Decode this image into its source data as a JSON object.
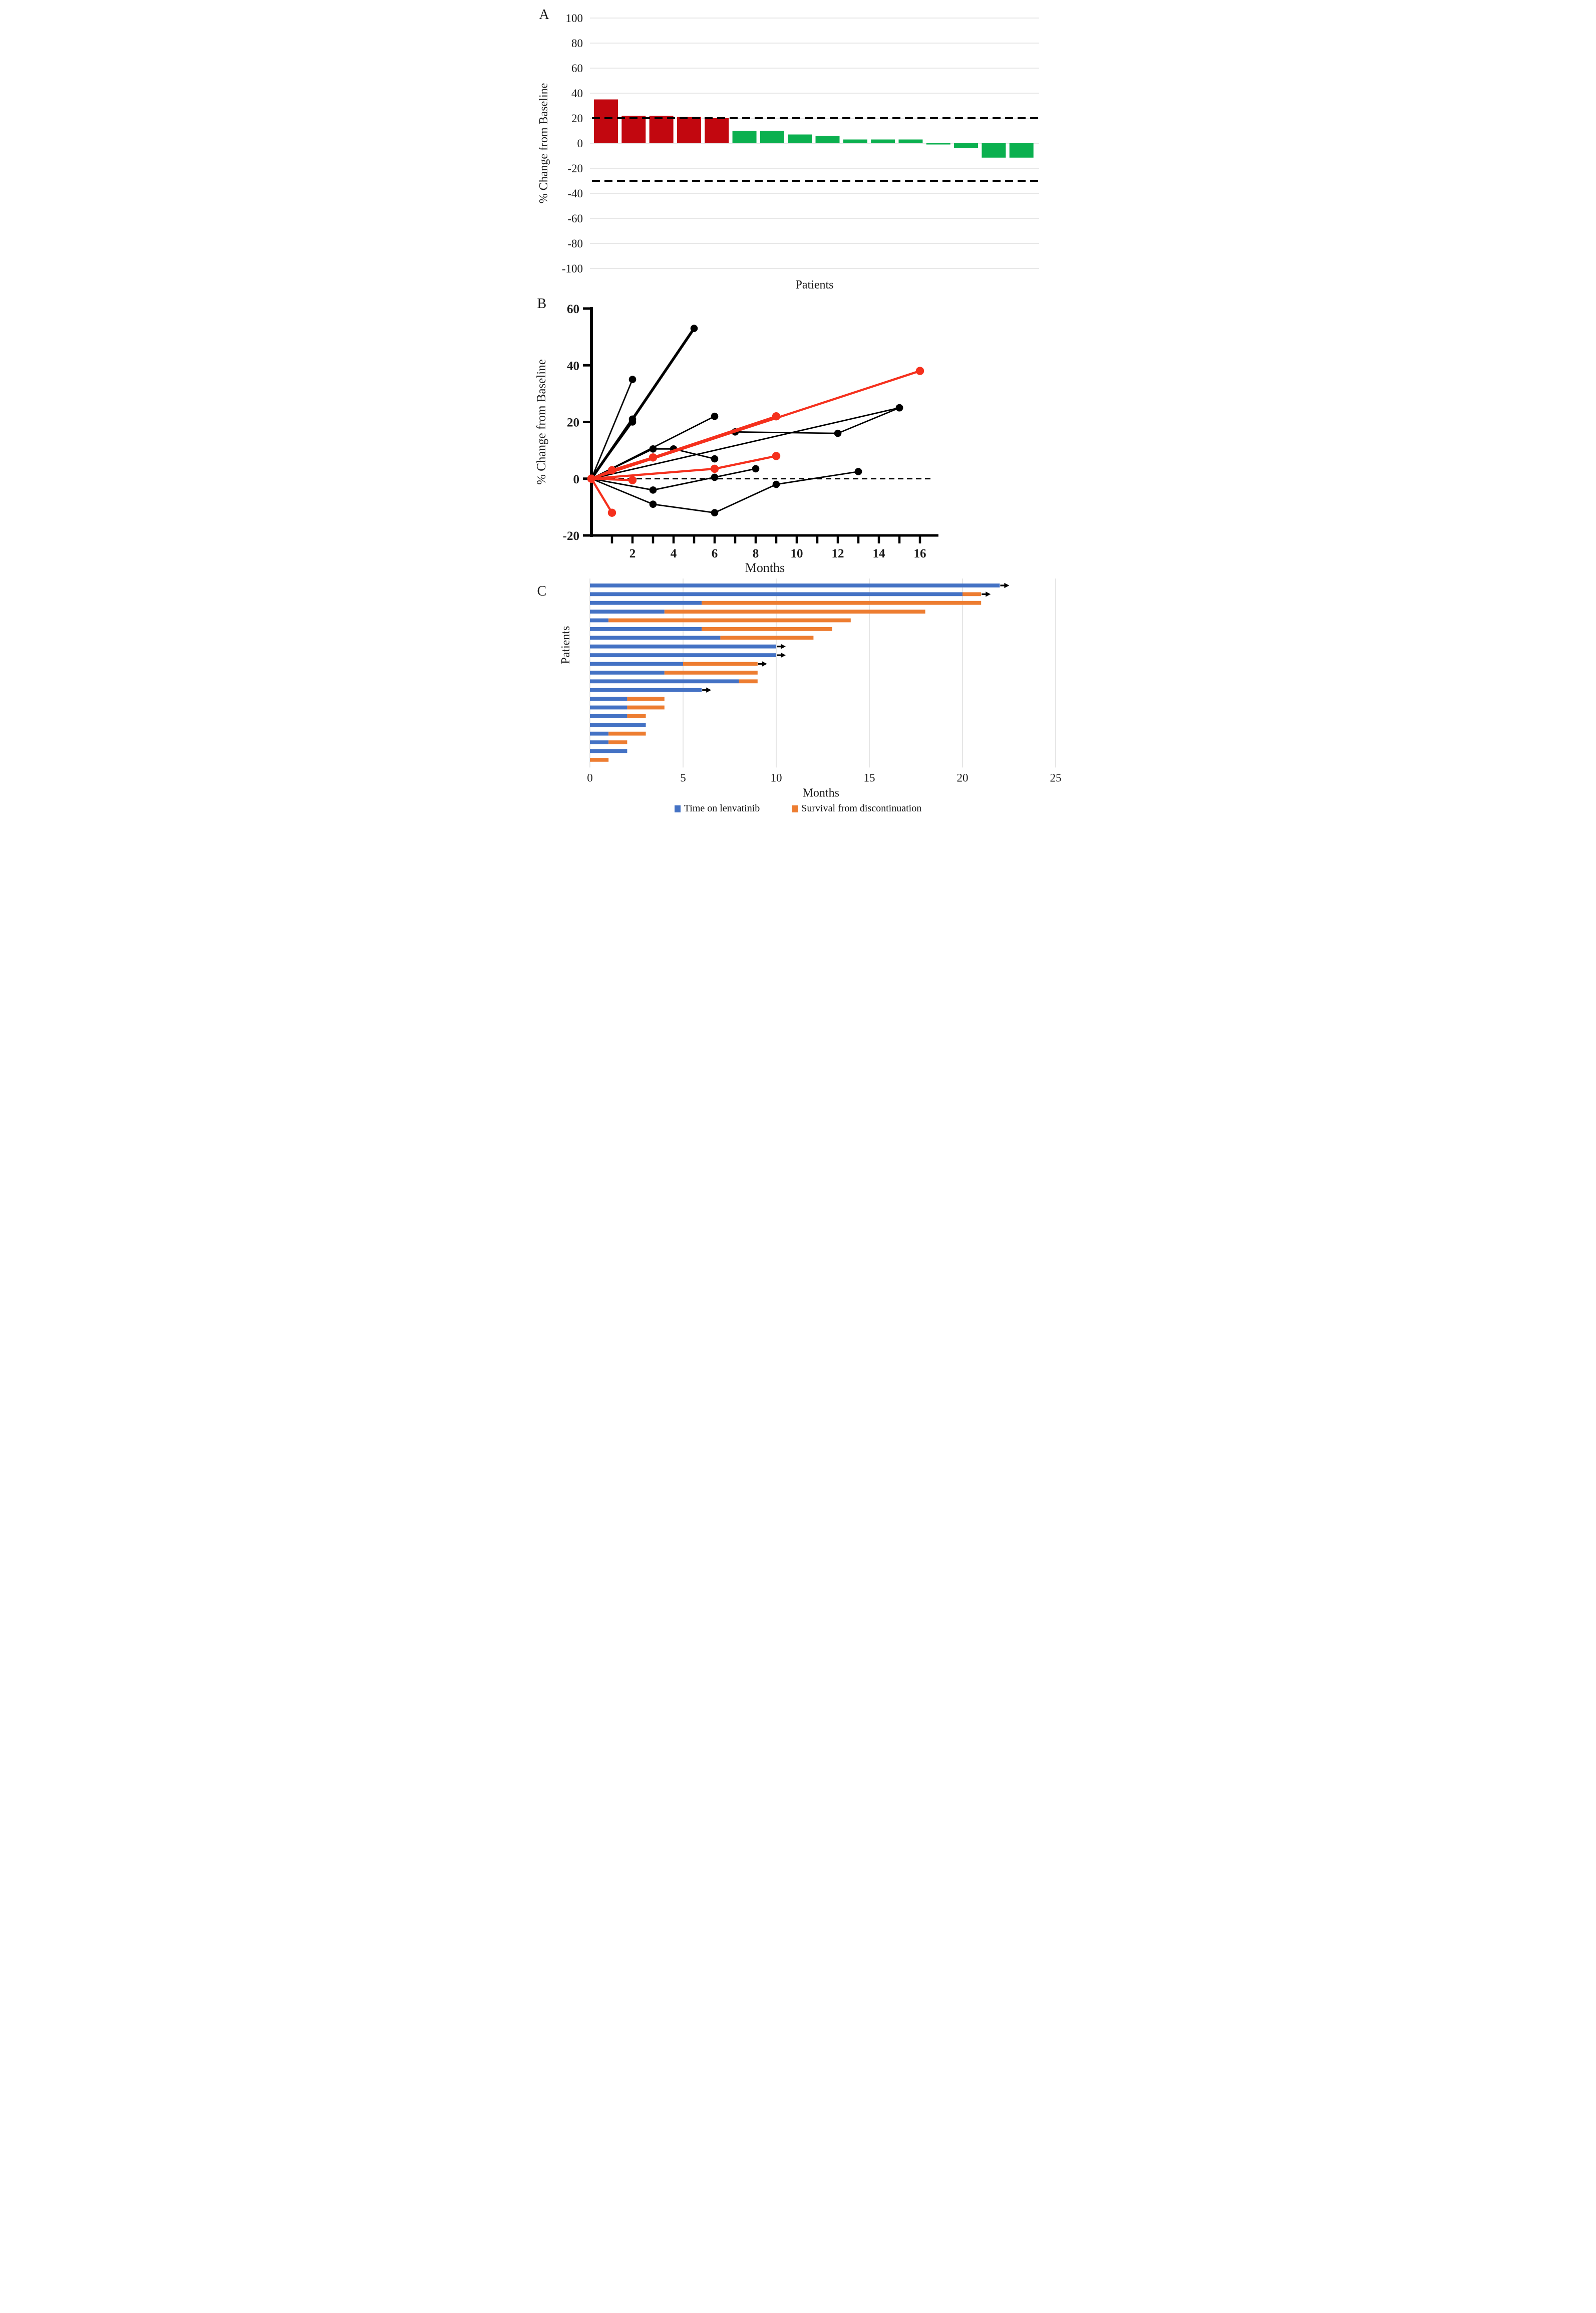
{
  "figure": {
    "panel_labels": [
      "A",
      "B",
      "C"
    ],
    "background": "#ffffff"
  },
  "colors": {
    "waterfall_increase": "#c2070f",
    "waterfall_decrease": "#0bb04f",
    "spider_black": "#000000",
    "spider_red": "#f5301d",
    "swimmer_blue": "#4472c4",
    "swimmer_orange": "#ed7d31",
    "gridline": "#e0e0e0",
    "gridline_c": "#d8d8d8",
    "reference_dash": "#000000"
  },
  "chart_data": [
    {
      "panel": "A",
      "type": "bar",
      "subtype": "waterfall",
      "title": "",
      "xlabel": "Patients",
      "ylabel": "% Change from Baseline",
      "ylim": [
        -100,
        100
      ],
      "yticks": [
        100,
        80,
        60,
        40,
        20,
        0,
        -20,
        -40,
        -60,
        -80,
        -100
      ],
      "grid": true,
      "reference_lines_y": [
        20,
        -30
      ],
      "values": [
        35,
        22,
        22,
        21,
        20,
        10,
        10,
        7,
        6,
        3,
        3,
        3,
        -1,
        -4,
        -11.5,
        -11.5
      ],
      "bar_color_split_index": 5,
      "increase_color": "#c2070f",
      "decrease_color": "#0bb04f"
    },
    {
      "panel": "B",
      "type": "line",
      "subtype": "spider",
      "title": "",
      "xlabel": "Months",
      "ylabel": "% Change from Baseline",
      "xlim": [
        0,
        17
      ],
      "ylim": [
        -20,
        60
      ],
      "yticks": [
        60,
        40,
        20,
        0,
        -20
      ],
      "xticks_minor": [
        1,
        2,
        3,
        4,
        5,
        6,
        7,
        8,
        9,
        10,
        11,
        12,
        13,
        14,
        15,
        16
      ],
      "xticks_labeled": [
        2,
        4,
        6,
        8,
        10,
        12,
        14,
        16
      ],
      "reference_line_y": 0,
      "series": [
        {
          "name": "patient-1",
          "color": "black",
          "points": [
            [
              0,
              0
            ],
            [
              2,
              35
            ]
          ]
        },
        {
          "name": "patient-2",
          "color": "black",
          "width": "thick",
          "points": [
            [
              0,
              0
            ],
            [
              2,
              21
            ],
            [
              5,
              53
            ]
          ]
        },
        {
          "name": "patient-3",
          "color": "black",
          "points": [
            [
              0,
              0
            ],
            [
              2,
              20
            ]
          ]
        },
        {
          "name": "patient-4",
          "color": "black",
          "points": [
            [
              0,
              0
            ],
            [
              6,
              22
            ]
          ]
        },
        {
          "name": "patient-5",
          "color": "black",
          "points": [
            [
              0,
              0
            ],
            [
              3,
              10.5
            ],
            [
              4,
              10.5
            ],
            [
              6,
              7
            ]
          ]
        },
        {
          "name": "patient-6",
          "color": "black",
          "points": [
            [
              0,
              0
            ],
            [
              7,
              16.5
            ],
            [
              12,
              16
            ],
            [
              15,
              25
            ]
          ]
        },
        {
          "name": "patient-7",
          "color": "black",
          "points": [
            [
              0,
              0
            ],
            [
              15,
              25
            ]
          ]
        },
        {
          "name": "patient-8",
          "color": "black",
          "points": [
            [
              0,
              0
            ],
            [
              3,
              -4
            ],
            [
              6,
              0.5
            ],
            [
              8,
              3.5
            ]
          ]
        },
        {
          "name": "patient-9",
          "color": "black",
          "points": [
            [
              0,
              0
            ],
            [
              3,
              -9
            ],
            [
              6,
              -12
            ],
            [
              9,
              -2
            ],
            [
              13,
              2.5
            ]
          ]
        },
        {
          "name": "patient-10",
          "color": "red",
          "points": [
            [
              0,
              0
            ],
            [
              16,
              38
            ]
          ]
        },
        {
          "name": "patient-11",
          "color": "red",
          "points": [
            [
              0,
              0
            ],
            [
              1,
              3
            ],
            [
              3,
              7.5
            ],
            [
              9,
              22
            ]
          ]
        },
        {
          "name": "patient-12",
          "color": "red",
          "points": [
            [
              0,
              0
            ],
            [
              6,
              3.5
            ],
            [
              9,
              8
            ]
          ]
        },
        {
          "name": "patient-13",
          "color": "red",
          "points": [
            [
              0,
              0
            ],
            [
              2,
              -0.5
            ]
          ]
        },
        {
          "name": "patient-14",
          "color": "red",
          "points": [
            [
              0,
              0
            ],
            [
              1,
              -12
            ]
          ]
        }
      ]
    },
    {
      "panel": "C",
      "type": "bar",
      "subtype": "swimmer",
      "title": "",
      "xlabel": "Months",
      "ylabel": "Patients",
      "xlim": [
        0,
        25
      ],
      "xticks": [
        0,
        5,
        10,
        15,
        20,
        25
      ],
      "grid": true,
      "rows": [
        {
          "time_on_lenvatinib": 22,
          "survival_from_discontinuation": 0,
          "ongoing": true
        },
        {
          "time_on_lenvatinib": 20,
          "survival_from_discontinuation": 1,
          "ongoing": true
        },
        {
          "time_on_lenvatinib": 6,
          "survival_from_discontinuation": 15,
          "ongoing": false
        },
        {
          "time_on_lenvatinib": 4,
          "survival_from_discontinuation": 14,
          "ongoing": false
        },
        {
          "time_on_lenvatinib": 1,
          "survival_from_discontinuation": 13,
          "ongoing": false
        },
        {
          "time_on_lenvatinib": 6,
          "survival_from_discontinuation": 7,
          "ongoing": false
        },
        {
          "time_on_lenvatinib": 7,
          "survival_from_discontinuation": 5,
          "ongoing": false
        },
        {
          "time_on_lenvatinib": 10,
          "survival_from_discontinuation": 0,
          "ongoing": true
        },
        {
          "time_on_lenvatinib": 10,
          "survival_from_discontinuation": 0,
          "ongoing": true
        },
        {
          "time_on_lenvatinib": 5,
          "survival_from_discontinuation": 4,
          "ongoing": true
        },
        {
          "time_on_lenvatinib": 4,
          "survival_from_discontinuation": 5,
          "ongoing": false
        },
        {
          "time_on_lenvatinib": 8,
          "survival_from_discontinuation": 1,
          "ongoing": false
        },
        {
          "time_on_lenvatinib": 6,
          "survival_from_discontinuation": 0,
          "ongoing": true
        },
        {
          "time_on_lenvatinib": 2,
          "survival_from_discontinuation": 2,
          "ongoing": false
        },
        {
          "time_on_lenvatinib": 2,
          "survival_from_discontinuation": 2,
          "ongoing": false
        },
        {
          "time_on_lenvatinib": 2,
          "survival_from_discontinuation": 1,
          "ongoing": false
        },
        {
          "time_on_lenvatinib": 3,
          "survival_from_discontinuation": 0,
          "ongoing": false
        },
        {
          "time_on_lenvatinib": 1,
          "survival_from_discontinuation": 2,
          "ongoing": false
        },
        {
          "time_on_lenvatinib": 1,
          "survival_from_discontinuation": 1,
          "ongoing": false
        },
        {
          "time_on_lenvatinib": 2,
          "survival_from_discontinuation": 0,
          "ongoing": false
        },
        {
          "time_on_lenvatinib": 0,
          "survival_from_discontinuation": 1,
          "ongoing": false
        }
      ],
      "legend": [
        {
          "label": "Time on lenvatinib",
          "color": "#4472c4"
        },
        {
          "label": "Survival from discontinuation",
          "color": "#ed7d31"
        }
      ]
    }
  ]
}
